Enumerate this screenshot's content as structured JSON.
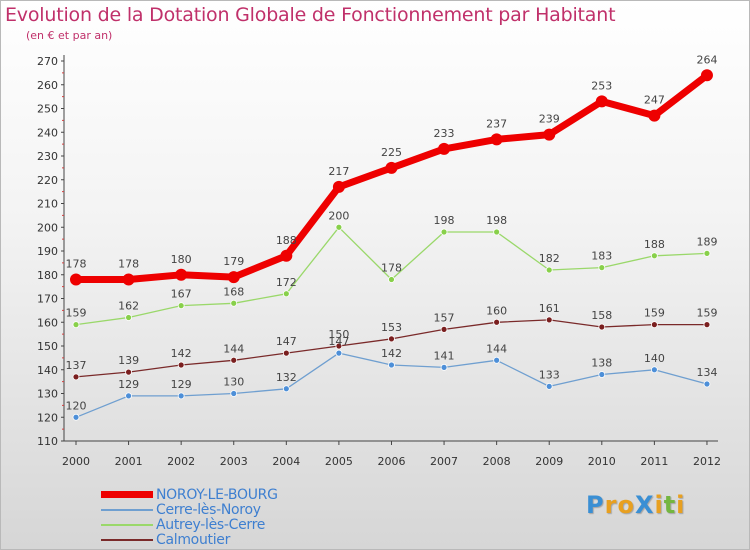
{
  "title": "Evolution de la Dotation Globale de Fonctionnement par Habitant",
  "subtitle": "(en € et par an)",
  "logo": {
    "text": "ProXiti",
    "letters": [
      "P",
      "r",
      "o",
      "X",
      "i",
      "t",
      "i"
    ],
    "colors": [
      "#3a8fd4",
      "#e8a020",
      "#e8a020",
      "#3a8fd4",
      "#e8a020",
      "#74b640",
      "#e8a020"
    ]
  },
  "chart_data": {
    "type": "line",
    "title": "Evolution de la Dotation Globale de Fonctionnement par Habitant",
    "ylabel": "(en € et par an)",
    "xlabel": "",
    "x": [
      "2000",
      "2001",
      "2002",
      "2003",
      "2004",
      "2005",
      "2006",
      "2007",
      "2008",
      "2009",
      "2010",
      "2011",
      "2012"
    ],
    "ylim": [
      110,
      270
    ],
    "yticks": [
      110,
      120,
      130,
      140,
      150,
      160,
      170,
      180,
      190,
      200,
      210,
      220,
      230,
      240,
      250,
      260,
      270
    ],
    "grid": false,
    "legend_position": "bottom-left",
    "series": [
      {
        "name": "NOROY-LE-BOURG",
        "color": "#ee0000",
        "marker_fill": "#ee0000",
        "values": [
          178,
          178,
          180,
          179,
          188,
          217,
          225,
          233,
          237,
          239,
          253,
          247,
          264
        ]
      },
      {
        "name": "Cerre-lès-Noroy",
        "color": "#6f9fd0",
        "marker_fill": "#4d8fd8",
        "values": [
          120,
          129,
          129,
          130,
          132,
          147,
          142,
          141,
          144,
          133,
          138,
          140,
          134
        ]
      },
      {
        "name": "Autrey-lès-Cerre",
        "color": "#9ad86a",
        "marker_fill": "#88d04a",
        "values": [
          159,
          162,
          167,
          168,
          172,
          200,
          178,
          198,
          198,
          182,
          183,
          188,
          189
        ]
      },
      {
        "name": "Calmoutier",
        "color": "#7a2a2a",
        "marker_fill": "#7a1f1f",
        "values": [
          137,
          139,
          142,
          144,
          147,
          150,
          153,
          157,
          160,
          161,
          158,
          159,
          159
        ]
      }
    ]
  }
}
